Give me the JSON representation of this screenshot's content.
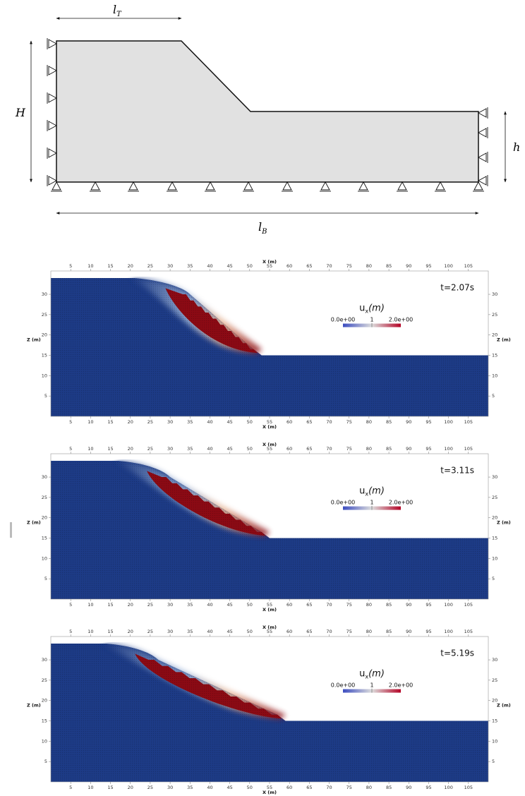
{
  "schematic": {
    "dims": {
      "lT": "l",
      "lT_sub": "T",
      "H": "H",
      "h": "h",
      "lB": "l",
      "lB_sub": "B"
    }
  },
  "colors": {
    "domain_fill": "#e1e1e1",
    "soil_blue": "#1d3b86",
    "cmap_low": "#3b4cc0",
    "cmap_mid": "#dddddd",
    "cmap_high": "#b40426",
    "moved": "#8b0a14"
  },
  "panels": [
    {
      "time_label": "t=2.07s",
      "field_label": "u",
      "field_sub": "x",
      "field_unit": "(m)",
      "cbar_min": "0.0e+00",
      "cbar_mid": "1",
      "cbar_max": "2.0e+00",
      "x_axis_label": "X (m)",
      "z_axis_label": "Z (m)",
      "x_ticks": [
        "5",
        "10",
        "15",
        "20",
        "25",
        "30",
        "35",
        "40",
        "45",
        "50",
        "55",
        "60",
        "65",
        "70",
        "75",
        "80",
        "85",
        "90",
        "95",
        "100",
        "105"
      ],
      "z_ticks": [
        "5",
        "10",
        "15",
        "20",
        "25",
        "30"
      ],
      "failure": {
        "crest_x": 33,
        "toe_x": 51,
        "scarp_x": 21
      }
    },
    {
      "time_label": "t=3.11s",
      "field_label": "u",
      "field_sub": "x",
      "field_unit": "(m)",
      "cbar_min": "0.0e+00",
      "cbar_mid": "1",
      "cbar_max": "2.0e+00",
      "x_axis_label": "X (m)",
      "z_axis_label": "Z (m)",
      "x_ticks": [
        "5",
        "10",
        "15",
        "20",
        "25",
        "30",
        "35",
        "40",
        "45",
        "50",
        "55",
        "60",
        "65",
        "70",
        "75",
        "80",
        "85",
        "90",
        "95",
        "100",
        "105"
      ],
      "z_ticks": [
        "5",
        "10",
        "15",
        "20",
        "25",
        "30"
      ],
      "failure": {
        "crest_x": 28,
        "toe_x": 53,
        "scarp_x": 17
      }
    },
    {
      "time_label": "t=5.19s",
      "field_label": "u",
      "field_sub": "x",
      "field_unit": "(m)",
      "cbar_min": "0.0e+00",
      "cbar_mid": "1",
      "cbar_max": "2.0e+00",
      "x_axis_label": "X (m)",
      "z_axis_label": "Z (m)",
      "x_ticks": [
        "5",
        "10",
        "15",
        "20",
        "25",
        "30",
        "35",
        "40",
        "45",
        "50",
        "55",
        "60",
        "65",
        "70",
        "75",
        "80",
        "85",
        "90",
        "95",
        "100",
        "105"
      ],
      "z_ticks": [
        "5",
        "10",
        "15",
        "20",
        "25",
        "30"
      ],
      "failure": {
        "crest_x": 25,
        "toe_x": 57,
        "scarp_x": 14
      }
    }
  ]
}
